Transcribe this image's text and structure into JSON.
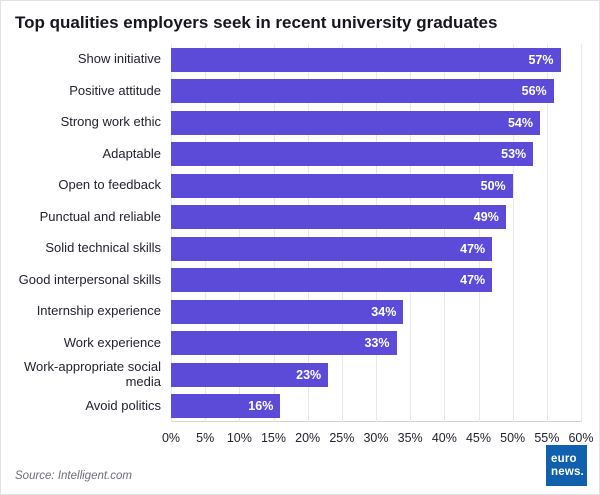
{
  "chart": {
    "title": "Top qualities employers seek in recent university graduates"
  },
  "chart_data": {
    "type": "bar",
    "orientation": "horizontal",
    "title": "Top qualities employers seek in recent university graduates",
    "categories": [
      "Show initiative",
      "Positive attitude",
      "Strong work ethic",
      "Adaptable",
      "Open to feedback",
      "Punctual and reliable",
      "Solid technical skills",
      "Good interpersonal skills",
      "Internship experience",
      "Work experience",
      "Work-appropriate social media",
      "Avoid politics"
    ],
    "values": [
      57,
      56,
      54,
      53,
      50,
      49,
      47,
      47,
      34,
      33,
      23,
      16
    ],
    "value_labels": [
      "57%",
      "56%",
      "54%",
      "53%",
      "50%",
      "49%",
      "47%",
      "47%",
      "34%",
      "33%",
      "23%",
      "16%"
    ],
    "xlim": [
      0,
      60
    ],
    "x_ticks": [
      "0%",
      "5%",
      "10%",
      "15%",
      "20%",
      "25%",
      "30%",
      "35%",
      "40%",
      "45%",
      "50%",
      "55%",
      "60%"
    ],
    "xlabel": "",
    "ylabel": "",
    "grid": true,
    "legend": false,
    "bar_color": "#5b4bd8",
    "value_label_color": "#ffffff"
  },
  "footer": {
    "source": "Source: Intelligent.com",
    "logo": {
      "line1": "euro",
      "line2": "news.",
      "color": "#1160ae"
    }
  }
}
